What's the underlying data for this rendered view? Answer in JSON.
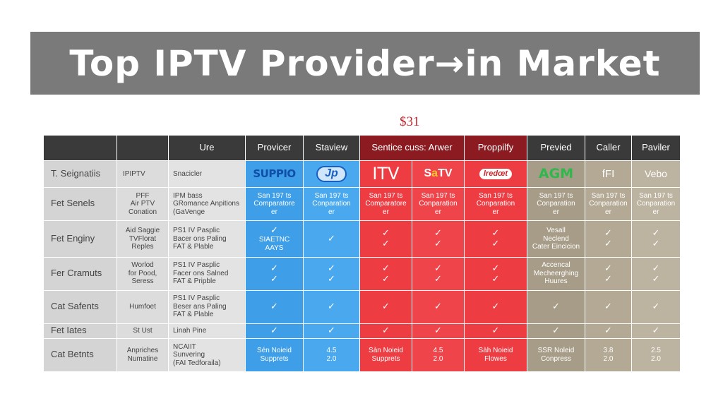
{
  "banner": {
    "title": "Top IPTV  Provider→in Market"
  },
  "price": "$31",
  "headers": [
    "",
    "",
    "Ure",
    "Provicer",
    "Staview",
    "Sentice cuss: Arwer",
    "",
    "Proppilfy",
    "Previed",
    "Caller",
    "Paviler"
  ],
  "logos": {
    "supp": "SUPPIO",
    "jp": "Jp",
    "itv": "ITV",
    "satv_pre": "S",
    "satv_o": "a",
    "satv_post": "TV",
    "red": "lredœt",
    "agm": "AGM",
    "fi": "fFI",
    "vebo": "Vebo"
  },
  "check": "✓",
  "rows": [
    {
      "label": "T. Seignatiis",
      "c1": "IPIPTV",
      "c2": "Snacicler"
    },
    {
      "label": "Fet Senels",
      "c1": [
        "PFF",
        "Air PTV",
        "Conation"
      ],
      "c2": [
        "IPM bass",
        "GRomance Anpitions",
        "(GaVenge"
      ],
      "comp": [
        "San 197 ts",
        "Comparatore",
        "er"
      ],
      "comp2": [
        "San 197 ts",
        "Conparation",
        "er"
      ]
    },
    {
      "label": "Fet Enginy",
      "c1": [
        "Aid Saggie",
        "TVFlorat",
        "Reples"
      ],
      "c2": [
        "PS1 IV Pasplic",
        "Bacer ons Paling",
        "FAT & Plable"
      ],
      "blue1": [
        "SIAETNC",
        "AAYS"
      ],
      "olive": [
        "Vesall",
        "Neclend",
        "Cater Eincicion"
      ]
    },
    {
      "label": "Fer Cramuts",
      "c1": [
        "Worlod",
        "for Pood,",
        "Seress"
      ],
      "c2": [
        "PS1 IV Pasplic",
        "Facer ons Salned",
        "FAT & Pripble"
      ],
      "olive": [
        "Accencal",
        "Mecheerghing",
        "Huures"
      ]
    },
    {
      "label": "Cat Safents",
      "c1": "Humfoet",
      "c2": [
        "PS1 IV Pasplic",
        "Beser ans Paling",
        "FAT & Plable"
      ]
    },
    {
      "label": "Fet Iates",
      "c1": "St Ust",
      "c2": "Linah Pine"
    },
    {
      "label": "Cat Betnts",
      "c1": [
        "Anpriches",
        "Numatine"
      ],
      "c2": [
        "NCAIIT",
        "Sunvering",
        "(FAI Tedforaila)"
      ],
      "blue1": [
        "Sén Noieid",
        "Supprets"
      ],
      "blue2": [
        "4.5",
        "2.0"
      ],
      "red1": [
        "Sàn Noieid",
        "Supprets"
      ],
      "red2": [
        "4.5",
        "2.0"
      ],
      "red3": [
        "Sàh Noieid",
        "Flowes"
      ],
      "olive": [
        "SSR Noleid",
        "Conpress"
      ],
      "ol2": [
        "3.8",
        "2.0"
      ],
      "ol3": [
        "2.5",
        "2.0"
      ]
    }
  ],
  "colors": {
    "banner": "#7a7a7a",
    "header": "#3a3a3a",
    "header_red": "#8b1a21",
    "blue": "#3e9ee8",
    "red": "#ee3c43",
    "olive": "#a79c87",
    "price": "#c0272d"
  }
}
